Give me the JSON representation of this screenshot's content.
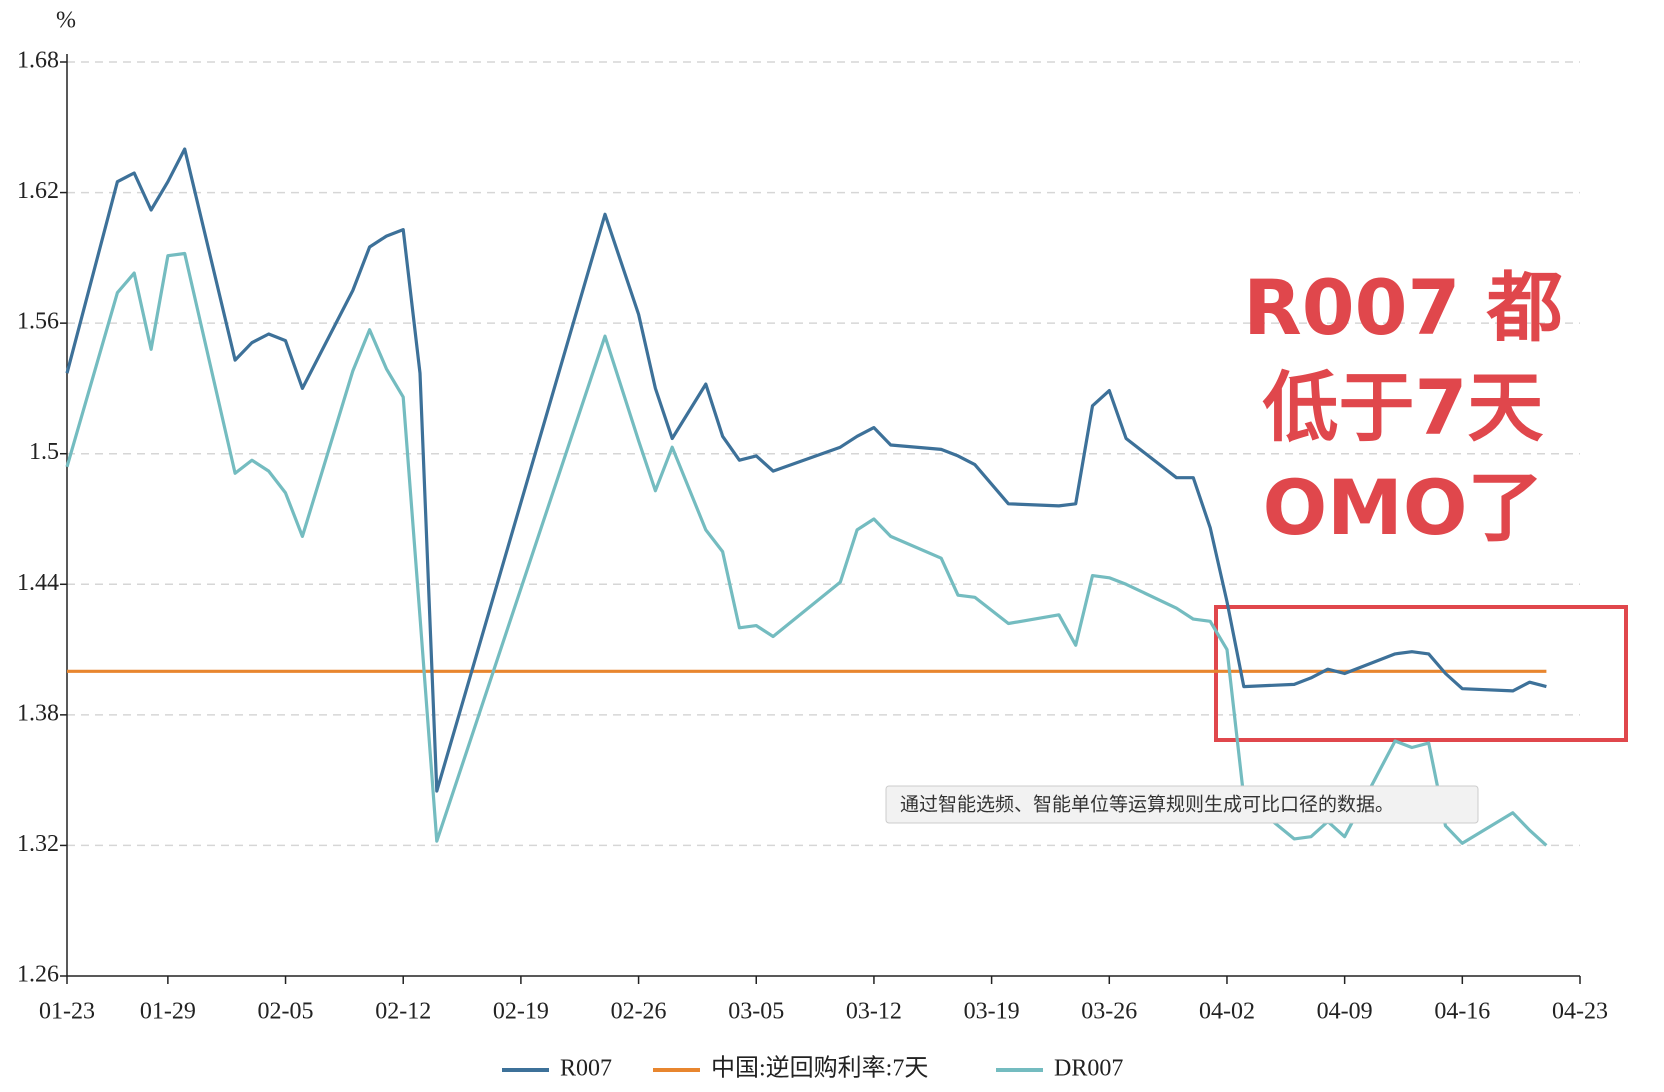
{
  "chart_data": {
    "type": "line",
    "y_unit": "%",
    "x": [
      "01-23",
      "01-26",
      "01-27",
      "01-28",
      "01-29",
      "01-30",
      "02-02",
      "02-03",
      "02-04",
      "02-05",
      "02-06",
      "02-09",
      "02-10",
      "02-11",
      "02-12",
      "02-13",
      "02-14",
      "02-24",
      "02-26",
      "02-27",
      "02-28",
      "03-02",
      "03-03",
      "03-04",
      "03-05",
      "03-06",
      "03-10",
      "03-11",
      "03-12",
      "03-13",
      "03-16",
      "03-17",
      "03-18",
      "03-19",
      "03-20",
      "03-23",
      "03-24",
      "03-25",
      "03-26",
      "03-27",
      "03-30",
      "03-31",
      "04-01",
      "04-02",
      "04-03",
      "04-06",
      "04-07",
      "04-08",
      "04-09",
      "04-12",
      "04-13",
      "04-14",
      "04-15",
      "04-16",
      "04-19",
      "04-20",
      "04-21"
    ],
    "xlim": [
      "01-23",
      "04-23"
    ],
    "xticks": [
      "01-23",
      "01-29",
      "02-05",
      "02-12",
      "02-19",
      "02-26",
      "03-05",
      "03-12",
      "03-19",
      "03-26",
      "04-02",
      "04-09",
      "04-16",
      "04-23"
    ],
    "ylim": [
      1.26,
      1.68
    ],
    "yticks": [
      1.26,
      1.32,
      1.38,
      1.44,
      1.5,
      1.56,
      1.62,
      1.68
    ],
    "grid": true,
    "legend": "bottom",
    "series": [
      {
        "name": "R007",
        "color": "#3d7199",
        "values": [
          1.537,
          1.625,
          1.629,
          1.612,
          1.625,
          1.64,
          1.543,
          1.551,
          1.555,
          1.552,
          1.53,
          1.575,
          1.595,
          1.6,
          1.603,
          1.537,
          1.345,
          1.61,
          1.564,
          1.53,
          1.507,
          1.532,
          1.508,
          1.497,
          1.499,
          1.492,
          1.503,
          1.508,
          1.512,
          1.504,
          1.502,
          1.499,
          1.495,
          1.486,
          1.477,
          1.476,
          1.477,
          1.522,
          1.529,
          1.507,
          1.489,
          1.489,
          1.466,
          1.432,
          1.393,
          1.394,
          1.397,
          1.401,
          1.399,
          1.408,
          1.409,
          1.408,
          1.399,
          1.392,
          1.391,
          1.395,
          1.393
        ]
      },
      {
        "name": "中国:逆回购利率:7天",
        "color": "#e8862f",
        "values": [
          1.4,
          1.4,
          1.4,
          1.4,
          1.4,
          1.4,
          1.4,
          1.4,
          1.4,
          1.4,
          1.4,
          1.4,
          1.4,
          1.4,
          1.4,
          1.4,
          1.4,
          1.4,
          1.4,
          1.4,
          1.4,
          1.4,
          1.4,
          1.4,
          1.4,
          1.4,
          1.4,
          1.4,
          1.4,
          1.4,
          1.4,
          1.4,
          1.4,
          1.4,
          1.4,
          1.4,
          1.4,
          1.4,
          1.4,
          1.4,
          1.4,
          1.4,
          1.4,
          1.4,
          1.4,
          1.4,
          1.4,
          1.4,
          1.4,
          1.4,
          1.4,
          1.4,
          1.4,
          1.4,
          1.4,
          1.4,
          1.4
        ]
      },
      {
        "name": "DR007",
        "color": "#74bcc0",
        "values": [
          1.494,
          1.574,
          1.583,
          1.548,
          1.591,
          1.592,
          1.491,
          1.497,
          1.492,
          1.482,
          1.462,
          1.538,
          1.557,
          1.539,
          1.526,
          1.425,
          1.322,
          1.554,
          1.506,
          1.483,
          1.503,
          1.465,
          1.455,
          1.42,
          1.421,
          1.416,
          1.441,
          1.465,
          1.47,
          1.462,
          1.452,
          1.435,
          1.434,
          1.428,
          1.422,
          1.426,
          1.412,
          1.444,
          1.443,
          1.44,
          1.429,
          1.424,
          1.423,
          1.41,
          1.342,
          1.323,
          1.324,
          1.331,
          1.324,
          1.368,
          1.365,
          1.367,
          1.329,
          1.321,
          1.335,
          1.327,
          1.32
        ]
      }
    ],
    "annotation": {
      "lines": [
        "R007 都",
        "低于7天",
        "OMO了"
      ],
      "color": "#e0474c"
    },
    "note": "通过智能选频、智能单位等运算规则生成可比口径的数据。"
  }
}
